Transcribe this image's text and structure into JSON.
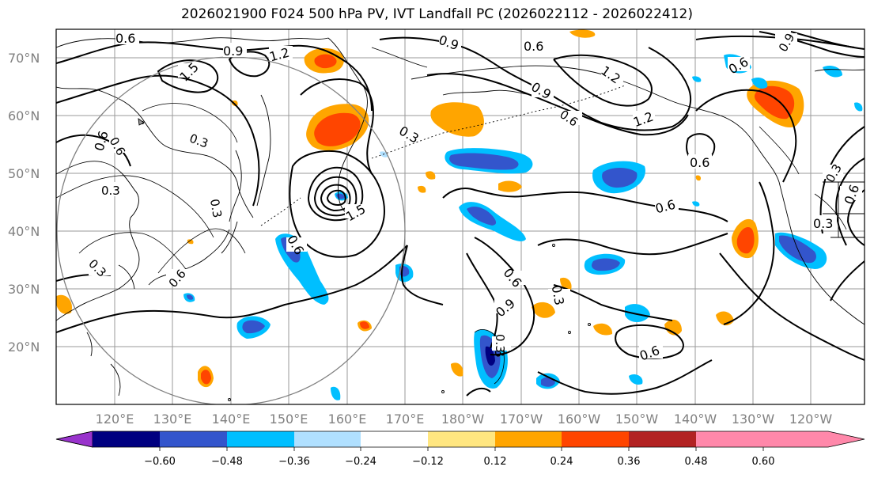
{
  "title": "2026021900 F024 500 hPa PV, IVT Landfall PC (2026022112 - 2026022412)",
  "map": {
    "lat_ticks": [
      "70°N",
      "60°N",
      "50°N",
      "40°N",
      "30°N",
      "20°N"
    ],
    "lon_ticks": [
      "120°E",
      "130°E",
      "140°E",
      "150°E",
      "160°E",
      "170°E",
      "180°W",
      "170°W",
      "160°W",
      "150°W",
      "140°W",
      "130°W",
      "120°W"
    ],
    "thick_contour_labels": [
      "0.6",
      "0.9",
      "1.2",
      "1.5",
      "0.6",
      "0.9",
      "1.2",
      "1.5",
      "0.6",
      "0.3",
      "0.9",
      "1.2",
      "0.6",
      "0.6",
      "0.6",
      "0.6",
      "0.3",
      "0.6",
      "0.9",
      "0.6",
      "0.3",
      "0.6",
      "0.3"
    ],
    "thin_contour_labels": [
      "0.3",
      "0.3",
      "0.3",
      "0.6",
      "0.3",
      "0.6",
      "0.3",
      "0.3",
      "0.9",
      "0.6"
    ]
  },
  "colorbar": {
    "colors": [
      "#9933cc",
      "#000080",
      "#3355cc",
      "#00bfff",
      "#b0e0ff",
      "#ffffff",
      "#ffe680",
      "#ffa500",
      "#ff4500",
      "#b22222",
      "#ff88aa"
    ],
    "tick_labels": [
      "−0.60",
      "−0.48",
      "−0.36",
      "−0.24",
      "−0.12",
      "0.12",
      "0.24",
      "0.36",
      "0.48",
      "0.60"
    ]
  }
}
